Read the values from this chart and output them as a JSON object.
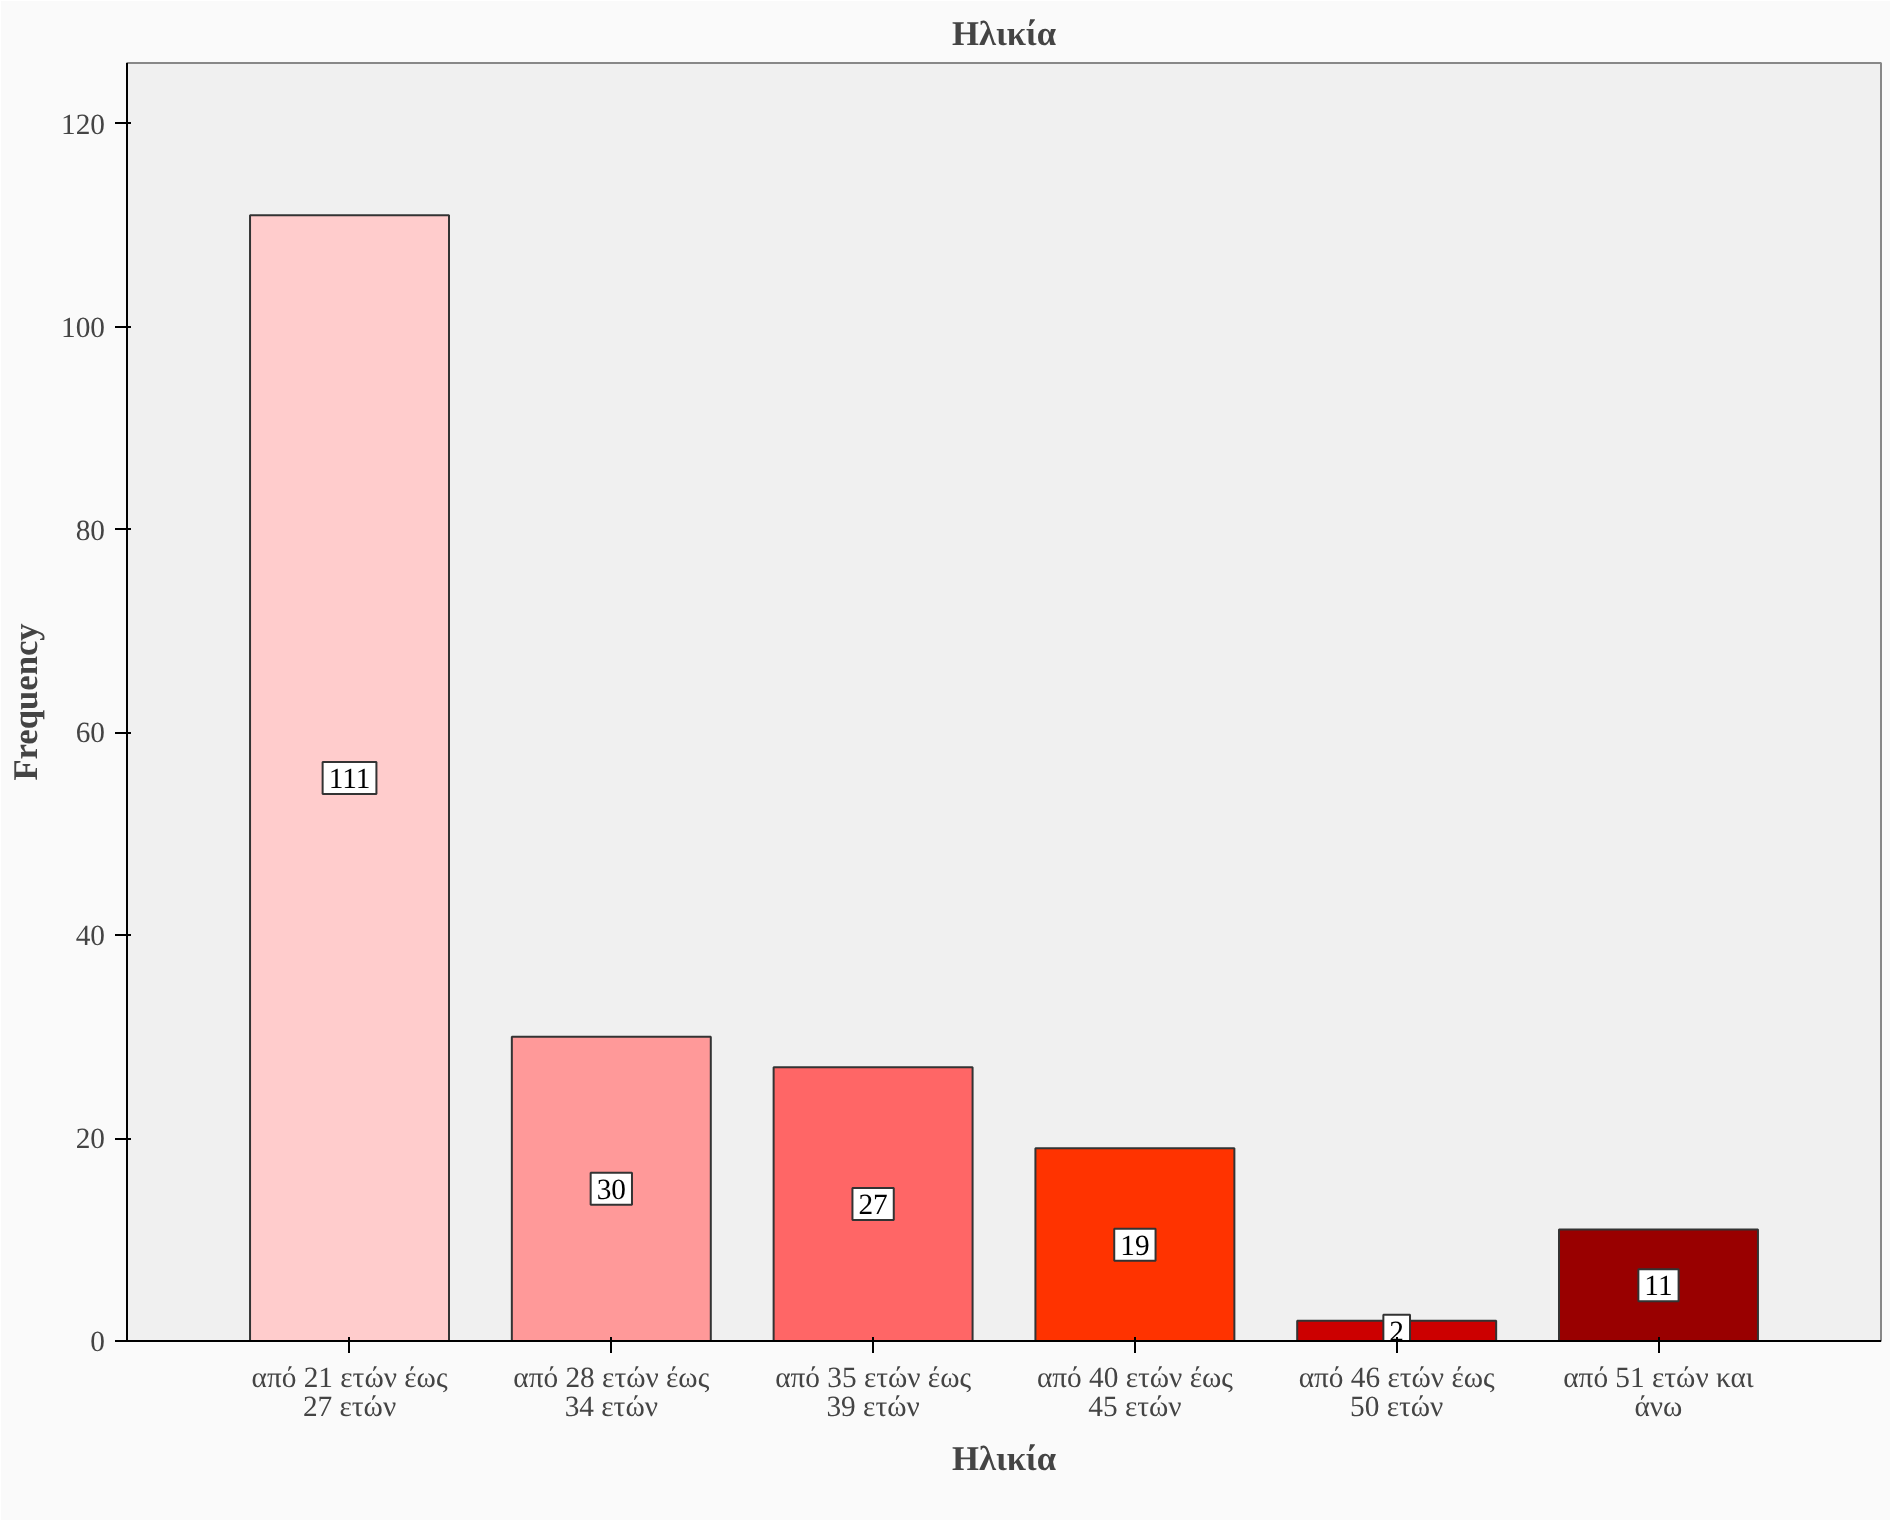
{
  "chart_data": {
    "type": "bar",
    "title": "Ηλικία",
    "xlabel": "Ηλικία",
    "ylabel": "Frequency",
    "categories": [
      "από 21 ετών έως\n27 ετών",
      "από 28 ετών έως\n34 ετών",
      "από 35 ετών έως\n39 ετών",
      "από 40 ετών έως\n45 ετών",
      "από 46 ετών έως\n50 ετών",
      "από 51 ετών και\nάνω"
    ],
    "values": [
      111,
      30,
      27,
      19,
      2,
      11
    ],
    "colors": [
      "#ffcccc",
      "#ff9999",
      "#ff6666",
      "#ff3300",
      "#cc0000",
      "#990000"
    ],
    "ylim": [
      0,
      126
    ],
    "yticks": [
      0,
      20,
      40,
      60,
      80,
      100,
      120
    ],
    "grid": false,
    "data_labels": true
  }
}
